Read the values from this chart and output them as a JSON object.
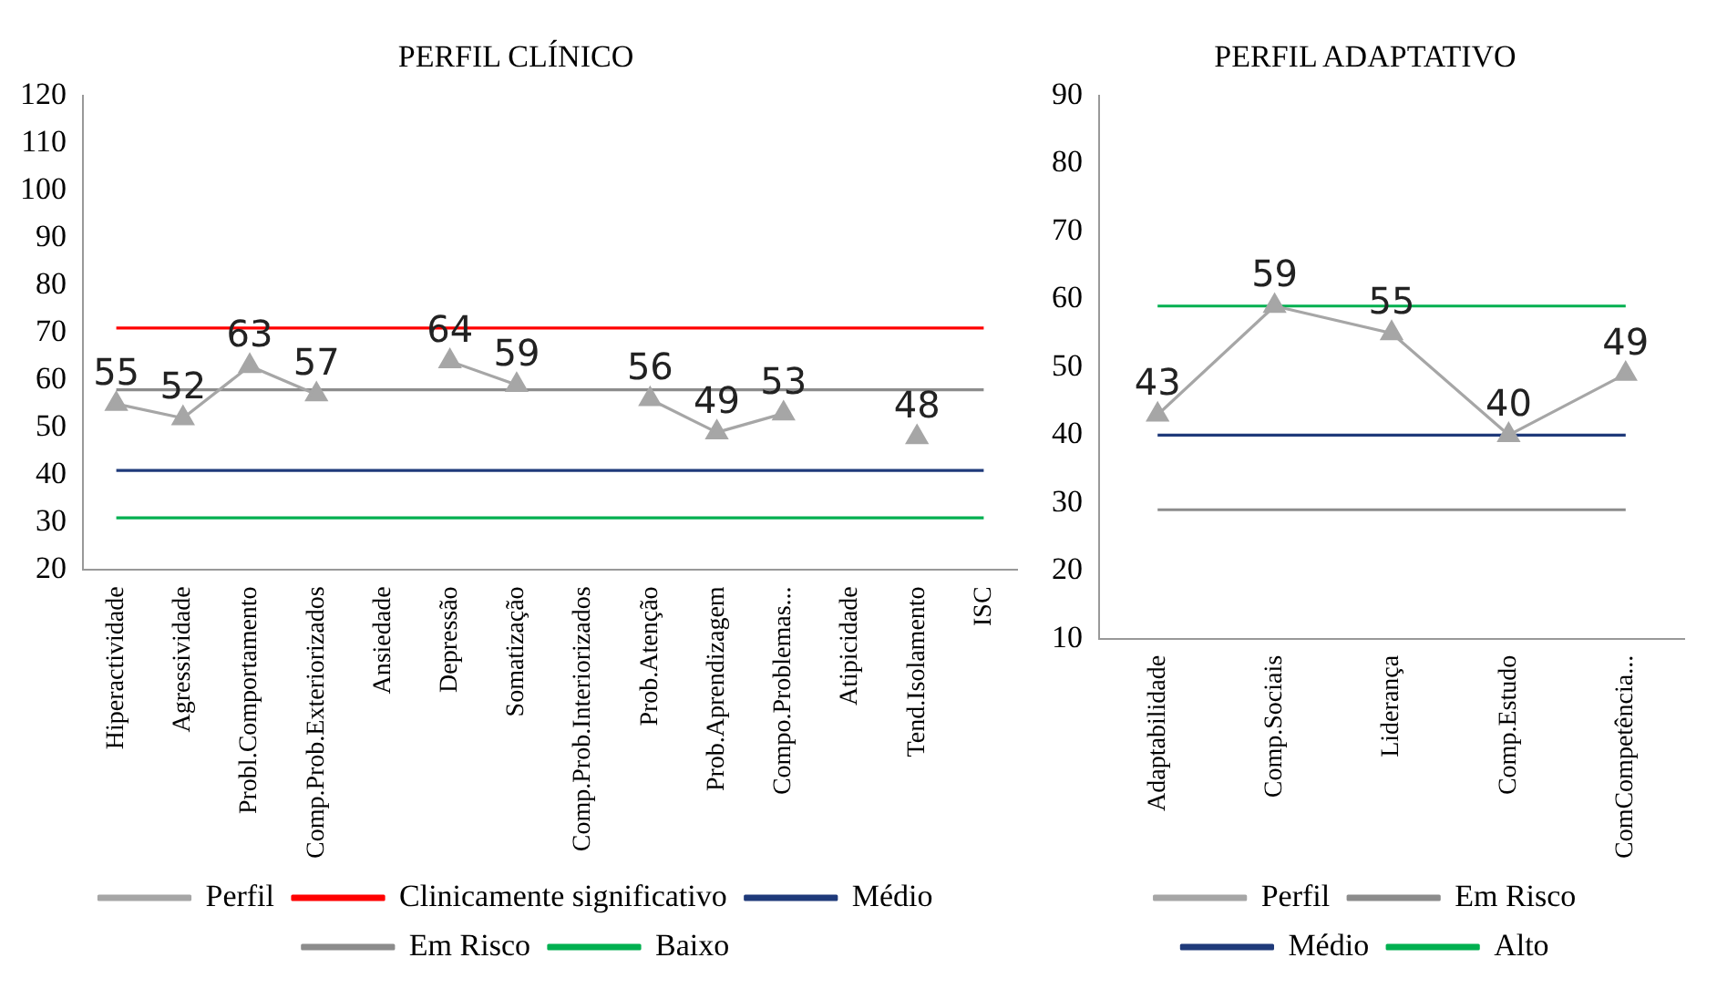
{
  "chart_data": [
    {
      "type": "line",
      "title": "PERFIL CLÍNICO",
      "categories": [
        "Hiperactividade",
        "Agressividade",
        "Probl.Comportamento",
        "Comp.Prob.Exteriorizados",
        "Ansiedade",
        "Depressão",
        "Somatização",
        "Comp.Prob.Interiorizados",
        "Prob.Atenção",
        "Prob.Aprendizagem",
        "Compo.Problemas...",
        "Atipicidade",
        "Tend.Isolamento",
        "ISC"
      ],
      "series": [
        {
          "name": "Perfil",
          "color": "#a6a6a6",
          "marker": "triangle",
          "data_labels": true,
          "values": [
            55,
            52,
            63,
            57,
            null,
            64,
            59,
            null,
            56,
            49,
            53,
            null,
            48,
            null
          ]
        },
        {
          "name": "Clinicamente significativo",
          "color": "#ff0000",
          "marker": "none",
          "values": [
            71,
            71,
            71,
            71,
            71,
            71,
            71,
            71,
            71,
            71,
            71,
            71,
            71,
            71
          ]
        },
        {
          "name": "Médio",
          "color": "#1f3a7a",
          "marker": "none",
          "values": [
            41,
            41,
            41,
            41,
            41,
            41,
            41,
            41,
            41,
            41,
            41,
            41,
            41,
            41
          ]
        },
        {
          "name": "Em Risco",
          "color": "#8c8c8c",
          "marker": "none",
          "values": [
            58,
            58,
            58,
            58,
            58,
            58,
            58,
            58,
            58,
            58,
            58,
            58,
            58,
            58
          ]
        },
        {
          "name": "Baixo",
          "color": "#00b050",
          "marker": "none",
          "values": [
            31,
            31,
            31,
            31,
            31,
            31,
            31,
            31,
            31,
            31,
            31,
            31,
            31,
            31
          ]
        }
      ],
      "ylim": [
        20,
        120
      ],
      "yticks": [
        20,
        30,
        40,
        50,
        60,
        70,
        80,
        90,
        100,
        110,
        120
      ],
      "grid": false,
      "legend": "bottom"
    },
    {
      "type": "line",
      "title": "PERFIL ADAPTATIVO",
      "categories": [
        "Adaptabilidade",
        "Comp.Sociais",
        "Liderança",
        "Comp.Estudo",
        "ComCompetência..."
      ],
      "series": [
        {
          "name": "Perfil",
          "color": "#a6a6a6",
          "marker": "triangle",
          "data_labels": true,
          "values": [
            43,
            59,
            55,
            40,
            49
          ]
        },
        {
          "name": "Em Risco",
          "color": "#8c8c8c",
          "marker": "none",
          "values": [
            29,
            29,
            29,
            29,
            29
          ]
        },
        {
          "name": "Médio",
          "color": "#1f3a7a",
          "marker": "none",
          "values": [
            40,
            40,
            40,
            40,
            40
          ]
        },
        {
          "name": "Alto",
          "color": "#00b050",
          "marker": "none",
          "values": [
            59,
            59,
            59,
            59,
            59
          ]
        }
      ],
      "ylim": [
        10,
        90
      ],
      "yticks": [
        10,
        20,
        30,
        40,
        50,
        60,
        70,
        80,
        90
      ],
      "grid": false,
      "legend": "bottom"
    }
  ]
}
